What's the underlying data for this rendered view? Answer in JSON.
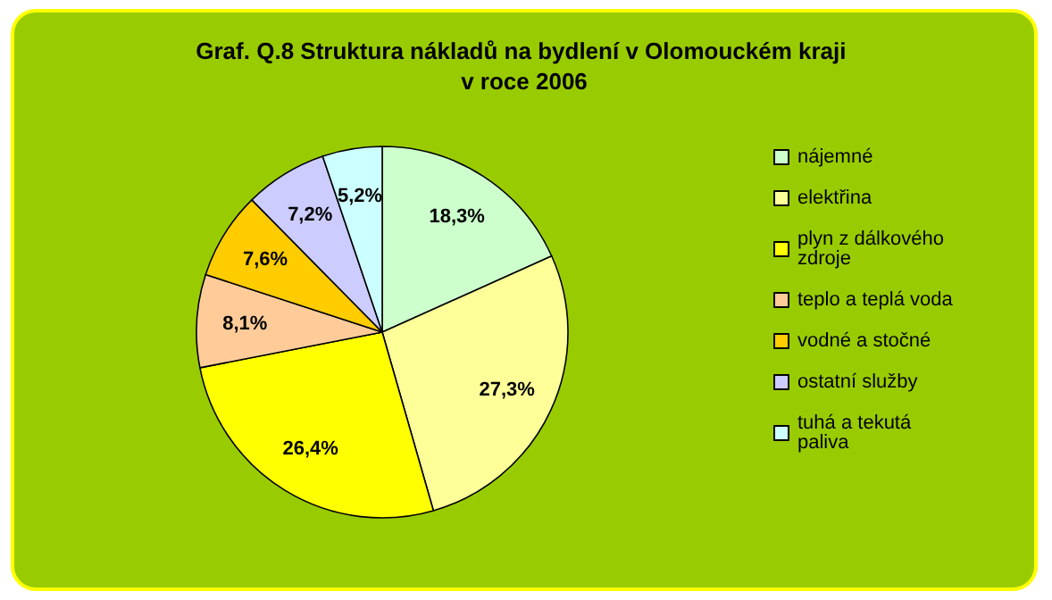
{
  "chart_data": {
    "type": "pie",
    "title": "Graf. Q.8 Struktura nákladů na bydlení v Olomouckém kraji v roce 2006",
    "categories": [
      "nájemné",
      "elektřina",
      "plyn z dálkového zdroje",
      "teplo a teplá voda",
      "vodné a stočné",
      "ostatní služby",
      "tuhá a tekutá paliva"
    ],
    "values": [
      18.3,
      27.3,
      26.4,
      8.1,
      7.6,
      7.2,
      5.2
    ],
    "colors": [
      "#ccffcc",
      "#ffff99",
      "#ffff00",
      "#ffcc99",
      "#ffcc00",
      "#ccccff",
      "#ccffff"
    ],
    "value_labels": [
      "18,3%",
      "27,3%",
      "26,4%",
      "8,1%",
      "7,6%",
      "7,2%",
      "5,2%"
    ],
    "legend": "right"
  }
}
